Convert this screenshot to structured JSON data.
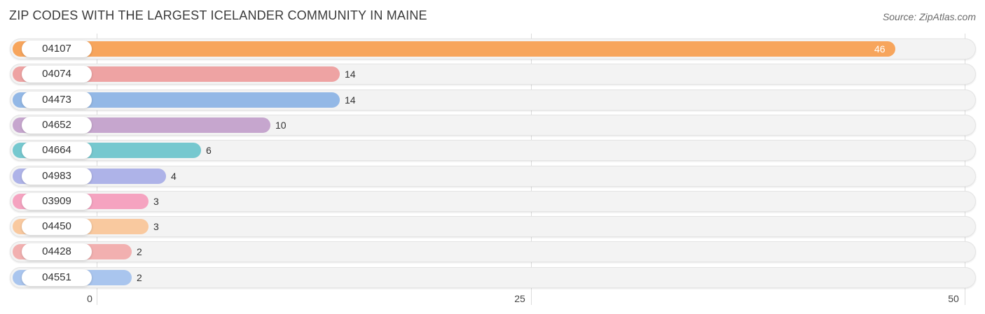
{
  "header": {
    "title": "ZIP CODES WITH THE LARGEST ICELANDER COMMUNITY IN MAINE",
    "source": "Source: ZipAtlas.com"
  },
  "colors": {
    "track": "#f3f3f3",
    "grid": "#dcdcdc",
    "text": "#333333"
  },
  "chart_data": {
    "type": "bar",
    "orientation": "horizontal",
    "title": "ZIP CODES WITH THE LARGEST ICELANDER COMMUNITY IN MAINE",
    "xlabel": "",
    "ylabel": "",
    "xlim": [
      0,
      50
    ],
    "ticks": [
      0,
      25,
      50
    ],
    "categories": [
      "04107",
      "04074",
      "04473",
      "04652",
      "04664",
      "04983",
      "03909",
      "04450",
      "04428",
      "04551"
    ],
    "values": [
      46,
      14,
      14,
      10,
      6,
      4,
      3,
      3,
      2,
      2
    ],
    "bar_colors": [
      "#f7a55c",
      "#eea3a3",
      "#93b8e6",
      "#c6a6ce",
      "#76c8cf",
      "#aeb3e8",
      "#f5a3c0",
      "#f9c99f",
      "#f2b0b0",
      "#a9c5ee"
    ],
    "grid": true,
    "legend": "none"
  }
}
